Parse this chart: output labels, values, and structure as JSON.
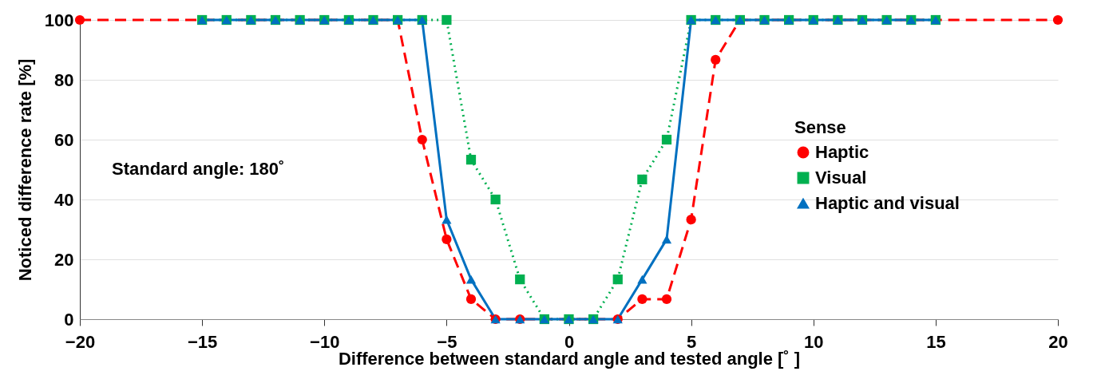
{
  "chart_data": {
    "type": "line",
    "xlabel": "Difference between standard angle and tested angle [˚ ]",
    "ylabel": "Noticed difference rate [%]",
    "legend_title": "Sense",
    "annotations": [
      "Standard angle: 180˚"
    ],
    "xlim": [
      -20,
      20
    ],
    "xticks": [
      -20,
      -15,
      -10,
      -5,
      0,
      5,
      10,
      15,
      20
    ],
    "ylim": [
      0,
      100
    ],
    "yticks": [
      0,
      20,
      40,
      60,
      80,
      100
    ],
    "grid": "y",
    "legend": "right",
    "series": [
      {
        "name": "Haptic",
        "color": "#ff0000",
        "marker": "circle",
        "line_style": "dashed",
        "x": [
          -20,
          -7,
          -6,
          -5,
          -4,
          -3,
          -2,
          -1,
          0,
          1,
          2,
          3,
          4,
          5,
          6,
          7,
          20
        ],
        "values": [
          100,
          100,
          60,
          26.7,
          6.7,
          0,
          0,
          0,
          0,
          0,
          0,
          6.7,
          6.7,
          33.3,
          86.7,
          100,
          100
        ]
      },
      {
        "name": "Visual",
        "color": "#00b050",
        "marker": "square",
        "line_style": "dotted",
        "x": [
          -15,
          -14,
          -13,
          -12,
          -11,
          -10,
          -9,
          -8,
          -7,
          -6,
          -5,
          -4,
          -3,
          -2,
          -1,
          0,
          1,
          2,
          3,
          4,
          5,
          6,
          7,
          8,
          9,
          10,
          11,
          12,
          13,
          14,
          15
        ],
        "values": [
          100,
          100,
          100,
          100,
          100,
          100,
          100,
          100,
          100,
          100,
          100,
          53.3,
          40,
          13.3,
          0,
          0,
          0,
          13.3,
          46.7,
          60,
          100,
          100,
          100,
          100,
          100,
          100,
          100,
          100,
          100,
          100,
          100
        ]
      },
      {
        "name": "Haptic and visual",
        "color": "#0070c0",
        "marker": "triangle",
        "line_style": "solid",
        "x": [
          -15,
          -14,
          -13,
          -12,
          -11,
          -10,
          -9,
          -8,
          -7,
          -6,
          -5,
          -4,
          -3,
          -2,
          -1,
          0,
          1,
          2,
          3,
          4,
          5,
          6,
          7,
          8,
          9,
          10,
          11,
          12,
          13,
          14,
          15
        ],
        "values": [
          100,
          100,
          100,
          100,
          100,
          100,
          100,
          100,
          100,
          100,
          33.3,
          13.3,
          0,
          0,
          0,
          0,
          0,
          0,
          13.3,
          26.7,
          100,
          100,
          100,
          100,
          100,
          100,
          100,
          100,
          100,
          100,
          100
        ]
      }
    ]
  }
}
